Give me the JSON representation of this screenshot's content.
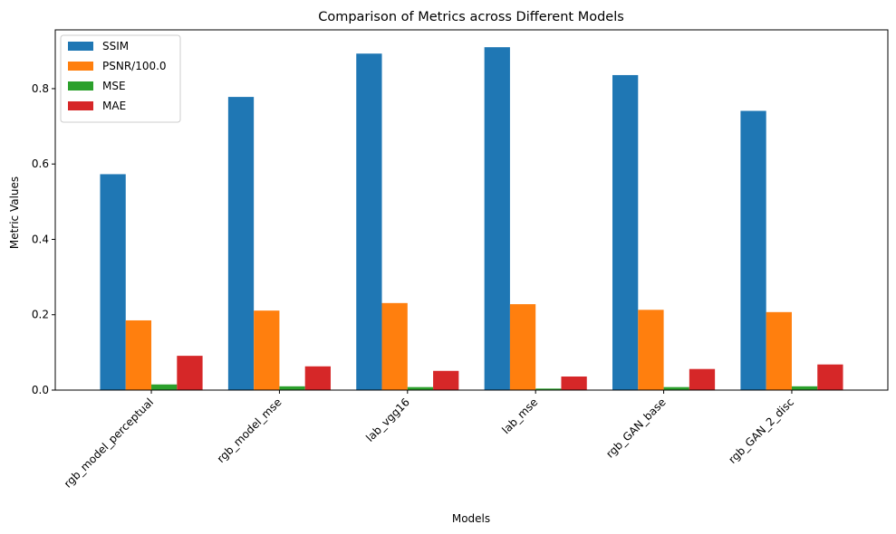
{
  "chart_data": {
    "type": "bar",
    "title": "Comparison of Metrics across Different Models",
    "xlabel": "Models",
    "ylabel": "Metric Values",
    "categories": [
      "rgb_model_perceptual",
      "rgb_model_mse",
      "lab_vgg16",
      "lab_mse",
      "rgb_GAN_base",
      "rgb_GAN_2_disc"
    ],
    "series": [
      {
        "name": "SSIM",
        "color": "#1f77b4",
        "values": [
          0.573,
          0.778,
          0.893,
          0.91,
          0.836,
          0.741
        ]
      },
      {
        "name": "PSNR/100.0",
        "color": "#ff7f0e",
        "values": [
          0.185,
          0.211,
          0.231,
          0.228,
          0.213,
          0.207
        ]
      },
      {
        "name": "MSE",
        "color": "#2ca02c",
        "values": [
          0.015,
          0.01,
          0.008,
          0.004,
          0.008,
          0.01
        ]
      },
      {
        "name": "MAE",
        "color": "#d62728",
        "values": [
          0.091,
          0.063,
          0.051,
          0.036,
          0.056,
          0.068
        ]
      }
    ],
    "ylim": [
      0,
      0.956
    ],
    "yticks": [
      0.0,
      0.2,
      0.4,
      0.6,
      0.8
    ],
    "ytick_labels": [
      "0.0",
      "0.2",
      "0.4",
      "0.6",
      "0.8"
    ],
    "grid": false,
    "legend_position": "upper-left"
  }
}
